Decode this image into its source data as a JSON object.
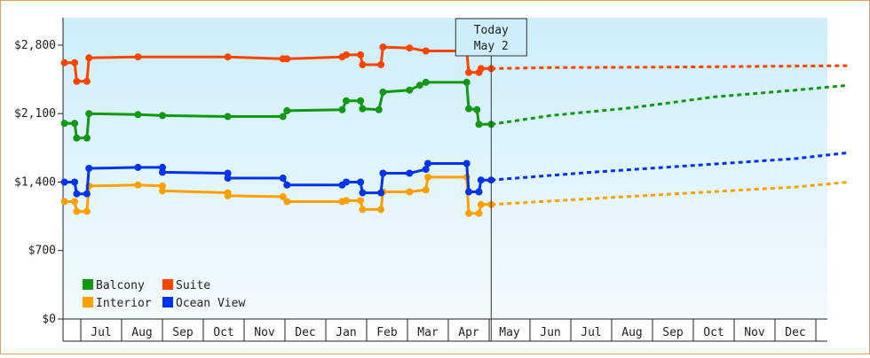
{
  "chart_data": {
    "type": "line",
    "title": "",
    "xlabel": "",
    "ylabel": "",
    "ylim": [
      0,
      3080
    ],
    "yticks": [
      0,
      700,
      1400,
      2100,
      2800
    ],
    "ytick_labels": [
      "$0",
      "$700",
      "$1,400",
      "$2,100",
      "$2,800"
    ],
    "month_labels": [
      "Jul",
      "Aug",
      "Sep",
      "Oct",
      "Nov",
      "Dec",
      "Jan",
      "Feb",
      "Mar",
      "Apr",
      "May",
      "Jun",
      "Jul",
      "Aug",
      "Sep",
      "Oct",
      "Nov",
      "Dec"
    ],
    "today": {
      "line1": "Today",
      "line2": "May 2",
      "month_index": 10.05
    },
    "grid": false,
    "legend_position": "bottom-left",
    "legend_columns": 2,
    "series": [
      {
        "name": "Balcony",
        "color": "#119911",
        "historical": [
          [
            -0.4,
            2000
          ],
          [
            -0.15,
            2000
          ],
          [
            -0.1,
            1850
          ],
          [
            0.15,
            1850
          ],
          [
            0.2,
            2100
          ],
          [
            1.4,
            2090
          ],
          [
            2.0,
            2080
          ],
          [
            3.6,
            2070
          ],
          [
            4.95,
            2070
          ],
          [
            5.05,
            2130
          ],
          [
            6.4,
            2140
          ],
          [
            6.5,
            2230
          ],
          [
            6.85,
            2230
          ],
          [
            6.9,
            2150
          ],
          [
            7.3,
            2140
          ],
          [
            7.4,
            2320
          ],
          [
            8.05,
            2340
          ],
          [
            8.3,
            2390
          ],
          [
            8.45,
            2420
          ],
          [
            9.45,
            2420
          ],
          [
            9.5,
            2150
          ],
          [
            9.7,
            2140
          ],
          [
            9.75,
            1990
          ],
          [
            10.05,
            1990
          ]
        ],
        "forecast": [
          [
            10.05,
            1990
          ],
          [
            11.5,
            2080
          ],
          [
            13.5,
            2160
          ],
          [
            15.5,
            2270
          ],
          [
            17.5,
            2340
          ],
          [
            18.8,
            2390
          ]
        ]
      },
      {
        "name": "Suite",
        "color": "#ff4400",
        "historical": [
          [
            -0.4,
            2620
          ],
          [
            -0.15,
            2620
          ],
          [
            -0.1,
            2430
          ],
          [
            0.15,
            2430
          ],
          [
            0.2,
            2670
          ],
          [
            1.4,
            2680
          ],
          [
            3.6,
            2680
          ],
          [
            4.95,
            2660
          ],
          [
            5.05,
            2660
          ],
          [
            6.4,
            2680
          ],
          [
            6.5,
            2700
          ],
          [
            6.85,
            2700
          ],
          [
            6.9,
            2600
          ],
          [
            7.35,
            2600
          ],
          [
            7.4,
            2780
          ],
          [
            8.05,
            2770
          ],
          [
            8.45,
            2740
          ],
          [
            9.45,
            2740
          ],
          [
            9.5,
            2520
          ],
          [
            9.75,
            2520
          ],
          [
            9.8,
            2560
          ],
          [
            10.05,
            2560
          ]
        ],
        "forecast": [
          [
            10.05,
            2560
          ],
          [
            11.5,
            2570
          ],
          [
            14.5,
            2575
          ],
          [
            18.8,
            2590
          ]
        ]
      },
      {
        "name": "Interior",
        "color": "#ff9f00",
        "historical": [
          [
            -0.4,
            1200
          ],
          [
            -0.15,
            1200
          ],
          [
            -0.1,
            1100
          ],
          [
            0.15,
            1100
          ],
          [
            0.2,
            1360
          ],
          [
            1.4,
            1370
          ],
          [
            2.0,
            1360
          ],
          [
            2.0,
            1310
          ],
          [
            3.6,
            1290
          ],
          [
            3.6,
            1260
          ],
          [
            4.95,
            1250
          ],
          [
            5.05,
            1200
          ],
          [
            6.4,
            1200
          ],
          [
            6.5,
            1210
          ],
          [
            6.85,
            1210
          ],
          [
            6.9,
            1120
          ],
          [
            7.35,
            1120
          ],
          [
            7.4,
            1300
          ],
          [
            8.05,
            1300
          ],
          [
            8.45,
            1320
          ],
          [
            8.5,
            1450
          ],
          [
            9.45,
            1450
          ],
          [
            9.5,
            1080
          ],
          [
            9.75,
            1080
          ],
          [
            9.8,
            1170
          ],
          [
            10.05,
            1170
          ]
        ],
        "forecast": [
          [
            10.05,
            1170
          ],
          [
            12.5,
            1230
          ],
          [
            15.0,
            1290
          ],
          [
            17.5,
            1350
          ],
          [
            18.8,
            1400
          ]
        ]
      },
      {
        "name": "Ocean View",
        "color": "#0033ee",
        "historical": [
          [
            -0.4,
            1400
          ],
          [
            -0.15,
            1400
          ],
          [
            -0.1,
            1280
          ],
          [
            0.15,
            1280
          ],
          [
            0.2,
            1540
          ],
          [
            1.4,
            1550
          ],
          [
            2.0,
            1550
          ],
          [
            2.0,
            1500
          ],
          [
            3.6,
            1490
          ],
          [
            3.6,
            1440
          ],
          [
            4.95,
            1440
          ],
          [
            5.05,
            1370
          ],
          [
            6.4,
            1370
          ],
          [
            6.5,
            1400
          ],
          [
            6.85,
            1400
          ],
          [
            6.9,
            1290
          ],
          [
            7.35,
            1290
          ],
          [
            7.4,
            1490
          ],
          [
            8.05,
            1490
          ],
          [
            8.45,
            1530
          ],
          [
            8.5,
            1590
          ],
          [
            9.45,
            1590
          ],
          [
            9.5,
            1300
          ],
          [
            9.75,
            1300
          ],
          [
            9.8,
            1420
          ],
          [
            10.05,
            1420
          ]
        ],
        "forecast": [
          [
            10.05,
            1420
          ],
          [
            12.5,
            1500
          ],
          [
            15.0,
            1570
          ],
          [
            17.5,
            1640
          ],
          [
            18.8,
            1700
          ]
        ]
      }
    ]
  }
}
